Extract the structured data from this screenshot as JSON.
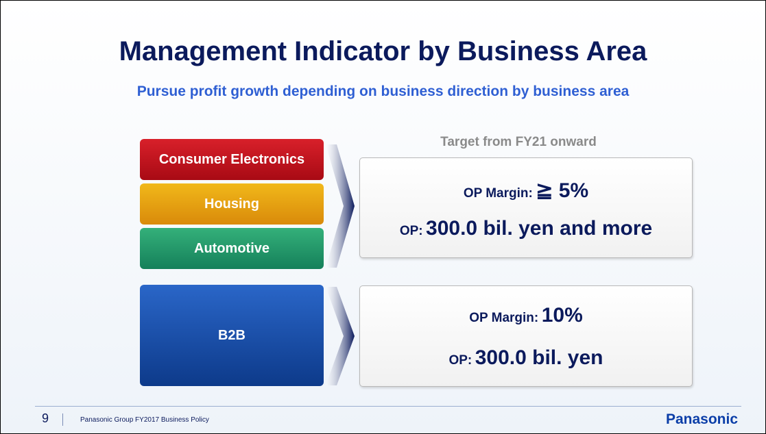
{
  "title": "Management Indicator by Business Area",
  "subtitle": "Pursue profit growth depending on business direction by business area",
  "target_label": "Target from FY21 onward",
  "segments": [
    "Consumer Electronics",
    "Housing",
    "Automotive",
    "B2B"
  ],
  "boxes": [
    {
      "margin_label": "OP Margin:",
      "margin_value": "≧ 5%",
      "op_label": "OP:",
      "op_value": "300.0 bil. yen and more"
    },
    {
      "margin_label": "OP Margin:",
      "margin_value": "10%",
      "op_label": "OP:",
      "op_value": "300.0 bil. yen"
    }
  ],
  "footer": {
    "page": "9",
    "text": "Panasonic Group FY2017 Business Policy",
    "logo": "Panasonic"
  }
}
